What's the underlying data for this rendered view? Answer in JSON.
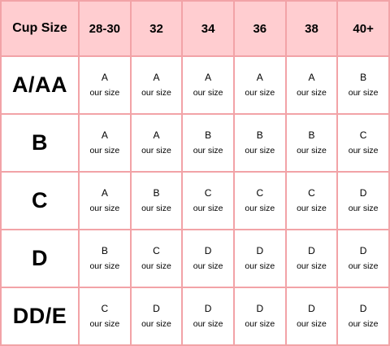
{
  "table": {
    "corner_label": "Cup Size",
    "columns": [
      "28-30",
      "32",
      "34",
      "36",
      "38",
      "40+"
    ],
    "note": "our size",
    "rows": [
      {
        "label": "A/AA",
        "cells": [
          "A",
          "A",
          "A",
          "A",
          "A",
          "B"
        ]
      },
      {
        "label": "B",
        "cells": [
          "A",
          "A",
          "B",
          "B",
          "B",
          "C"
        ]
      },
      {
        "label": "C",
        "cells": [
          "A",
          "B",
          "C",
          "C",
          "C",
          "D"
        ]
      },
      {
        "label": "D",
        "cells": [
          "B",
          "C",
          "D",
          "D",
          "D",
          "D"
        ]
      },
      {
        "label": "DD/E",
        "cells": [
          "C",
          "D",
          "D",
          "D",
          "D",
          "D"
        ]
      }
    ]
  },
  "colors": {
    "header_fill": "#ffcdd0",
    "grid_line": "#f2a3a7"
  }
}
